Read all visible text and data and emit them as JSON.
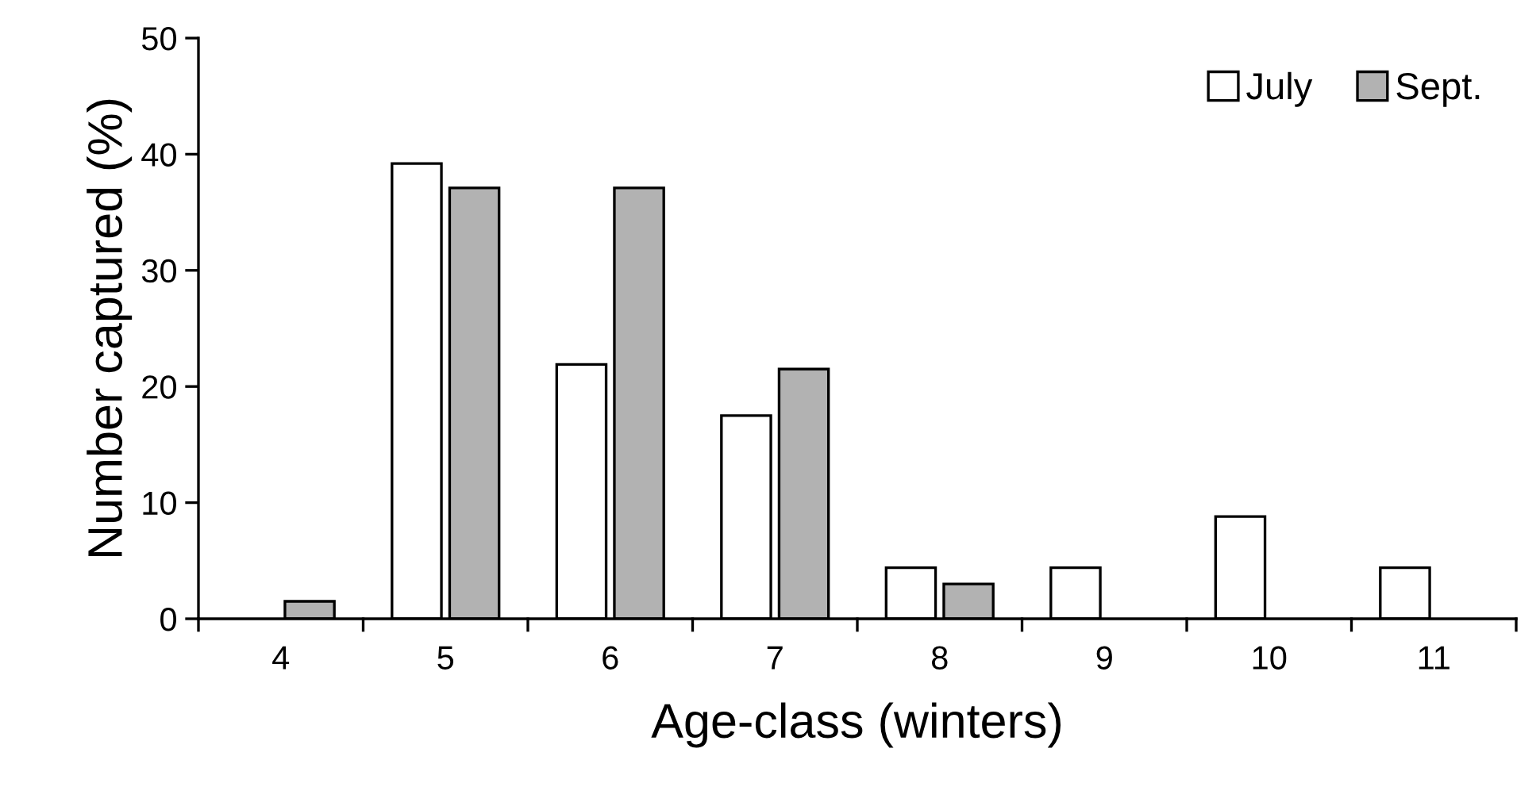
{
  "chart_data": {
    "type": "bar",
    "xlabel": "Age-class (winters)",
    "ylabel": "Number captured (%)",
    "categories": [
      "4",
      "5",
      "6",
      "7",
      "8",
      "9",
      "10",
      "11"
    ],
    "series": [
      {
        "name": "July",
        "color": "#ffffff",
        "values": [
          null,
          39.2,
          21.9,
          17.5,
          4.4,
          4.4,
          8.8,
          4.4
        ]
      },
      {
        "name": "Sept.",
        "color": "#b2b2b2",
        "values": [
          1.5,
          37.1,
          37.1,
          21.5,
          3.0,
          null,
          null,
          null
        ]
      }
    ],
    "ylim": [
      0,
      50
    ],
    "yticks": [
      0,
      10,
      20,
      30,
      40,
      50
    ],
    "grid": false,
    "legend": "top right"
  }
}
